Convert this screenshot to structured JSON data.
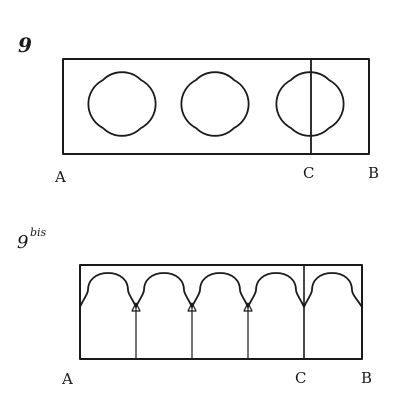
{
  "figures": [
    {
      "number": "9",
      "points": {
        "left": "A",
        "middle": "C",
        "right": "B"
      }
    },
    {
      "number": "9",
      "superscript": "bis",
      "points": {
        "left": "A",
        "middle": "C",
        "right": "B"
      }
    }
  ]
}
